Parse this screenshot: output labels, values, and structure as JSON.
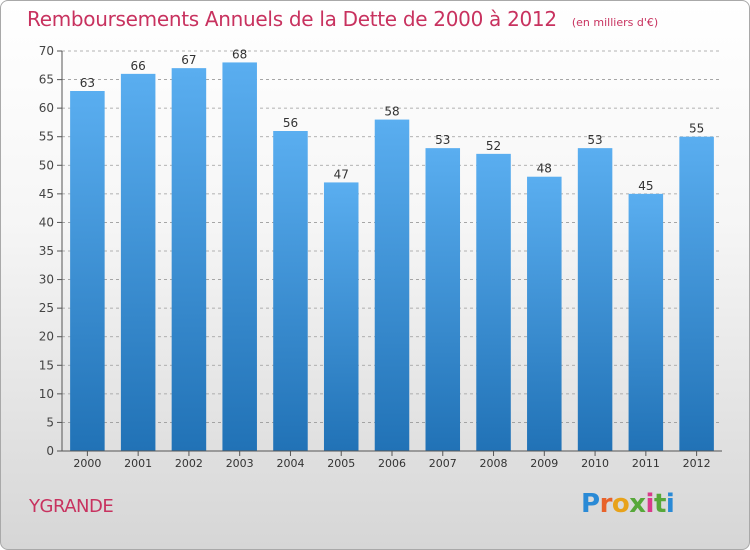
{
  "header": {
    "title": "Remboursements Annuels de la Dette de 2000 à 2012",
    "unit": "(en milliers d'€)"
  },
  "footer": {
    "commune": "YGRANDE",
    "logo_text": "Proxiti"
  },
  "colors": {
    "title": "#c8325f",
    "bar_top": "#5aaef0",
    "bar_bottom": "#2172b6",
    "grid": "#9a9a9a"
  },
  "chart_data": {
    "type": "bar",
    "title": "Remboursements Annuels de la Dette de 2000 à 2012",
    "subtitle": "(en milliers d'€)",
    "categories": [
      "2000",
      "2001",
      "2002",
      "2003",
      "2004",
      "2005",
      "2006",
      "2007",
      "2008",
      "2009",
      "2010",
      "2011",
      "2012"
    ],
    "values": [
      63,
      66,
      67,
      68,
      56,
      47,
      58,
      53,
      52,
      48,
      53,
      45,
      55
    ],
    "ylim": [
      0,
      70
    ],
    "yticks": [
      0,
      5,
      10,
      15,
      20,
      25,
      30,
      35,
      40,
      45,
      50,
      55,
      60,
      65,
      70
    ],
    "grid": "horizontal dashed",
    "data_labels": true,
    "legend": "none"
  }
}
